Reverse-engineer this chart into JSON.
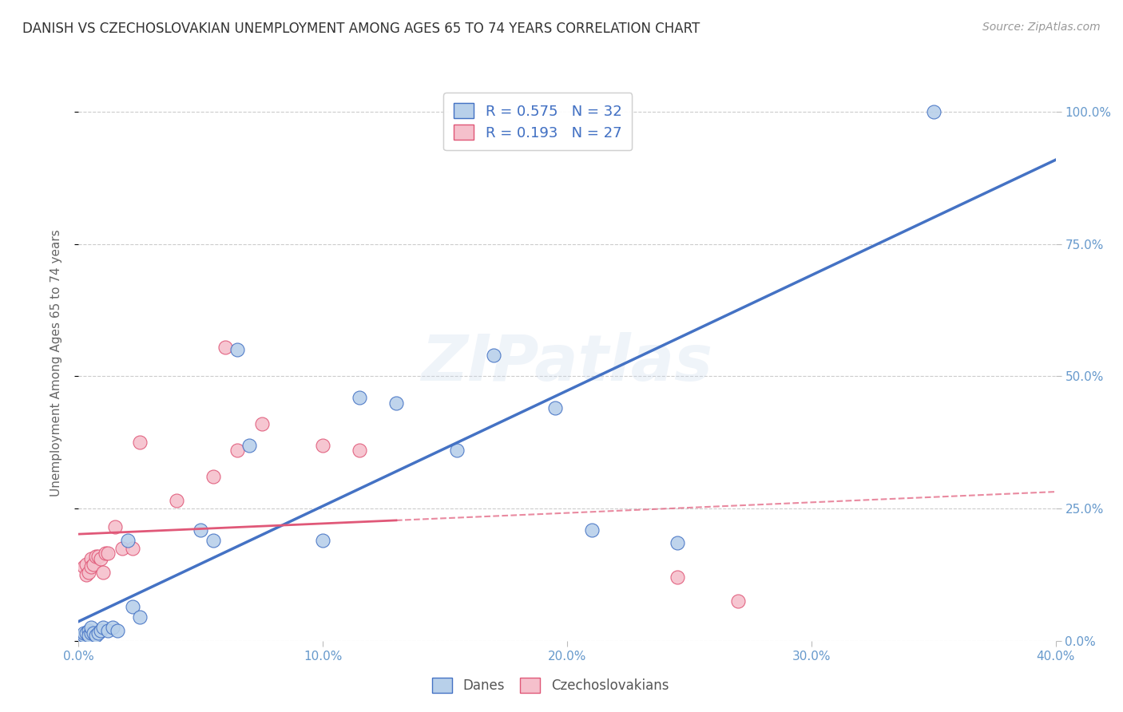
{
  "title": "DANISH VS CZECHOSLOVAKIAN UNEMPLOYMENT AMONG AGES 65 TO 74 YEARS CORRELATION CHART",
  "source": "Source: ZipAtlas.com",
  "ylabel": "Unemployment Among Ages 65 to 74 years",
  "xlim": [
    0.0,
    0.4
  ],
  "ylim": [
    0.0,
    1.05
  ],
  "danish_R": "0.575",
  "danish_N": "32",
  "czech_R": "0.193",
  "czech_N": "27",
  "danish_scatter_color": "#b8d0ea",
  "danish_edge_color": "#4472c4",
  "danish_line_color": "#4472c4",
  "czech_scatter_color": "#f5c0cc",
  "czech_edge_color": "#e05878",
  "czech_line_color": "#e05878",
  "danes_scatter_x": [
    0.001,
    0.002,
    0.002,
    0.003,
    0.004,
    0.004,
    0.005,
    0.005,
    0.006,
    0.007,
    0.008,
    0.009,
    0.01,
    0.012,
    0.014,
    0.016,
    0.02,
    0.022,
    0.025,
    0.05,
    0.055,
    0.065,
    0.07,
    0.1,
    0.115,
    0.13,
    0.155,
    0.17,
    0.195,
    0.21,
    0.245,
    0.35
  ],
  "danes_scatter_y": [
    0.005,
    0.01,
    0.015,
    0.015,
    0.02,
    0.01,
    0.015,
    0.025,
    0.015,
    0.01,
    0.015,
    0.02,
    0.025,
    0.02,
    0.025,
    0.02,
    0.19,
    0.065,
    0.045,
    0.21,
    0.19,
    0.55,
    0.37,
    0.19,
    0.46,
    0.45,
    0.36,
    0.54,
    0.44,
    0.21,
    0.185,
    1.0
  ],
  "czech_scatter_x": [
    0.001,
    0.002,
    0.003,
    0.003,
    0.004,
    0.005,
    0.005,
    0.006,
    0.007,
    0.008,
    0.009,
    0.01,
    0.011,
    0.012,
    0.015,
    0.018,
    0.022,
    0.025,
    0.04,
    0.055,
    0.06,
    0.065,
    0.075,
    0.1,
    0.115,
    0.245,
    0.27
  ],
  "czech_scatter_y": [
    0.005,
    0.14,
    0.125,
    0.145,
    0.13,
    0.155,
    0.14,
    0.145,
    0.16,
    0.16,
    0.155,
    0.13,
    0.165,
    0.165,
    0.215,
    0.175,
    0.175,
    0.375,
    0.265,
    0.31,
    0.555,
    0.36,
    0.41,
    0.37,
    0.36,
    0.12,
    0.075
  ],
  "watermark": "ZIPatlas",
  "background_color": "#ffffff",
  "grid_color": "#cccccc",
  "title_color": "#333333",
  "axis_tick_color": "#6699cc",
  "legend_label1": "Danes",
  "legend_label2": "Czechoslovakians"
}
